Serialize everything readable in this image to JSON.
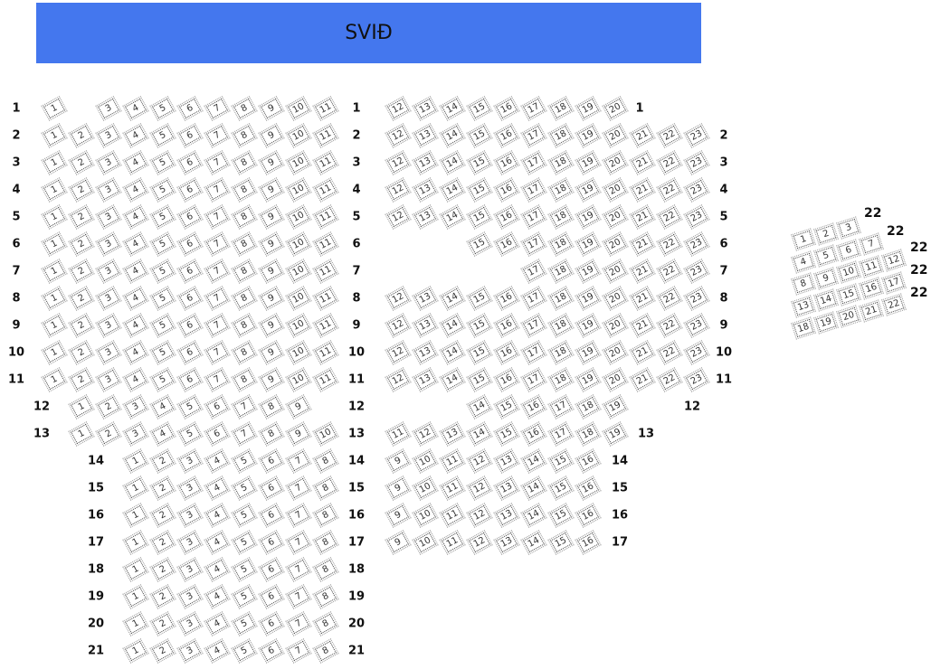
{
  "stage": {
    "label": "SVIÐ",
    "color": "#4477ee"
  },
  "seat_icon": "seat-icon",
  "left_section": {
    "rows": [
      {
        "label": "1",
        "seats": [
          1,
          3,
          4,
          5,
          6,
          7,
          8,
          9,
          10,
          11
        ]
      },
      {
        "label": "2",
        "seats": [
          1,
          2,
          3,
          4,
          5,
          6,
          7,
          8,
          9,
          10,
          11
        ]
      },
      {
        "label": "3",
        "seats": [
          1,
          2,
          3,
          4,
          5,
          6,
          7,
          8,
          9,
          10,
          11
        ]
      },
      {
        "label": "4",
        "seats": [
          1,
          2,
          3,
          4,
          5,
          6,
          7,
          8,
          9,
          10,
          11
        ]
      },
      {
        "label": "5",
        "seats": [
          1,
          2,
          3,
          4,
          5,
          6,
          7,
          8,
          9,
          10,
          11
        ]
      },
      {
        "label": "6",
        "seats": [
          1,
          2,
          3,
          4,
          5,
          6,
          7,
          8,
          9,
          10,
          11
        ]
      },
      {
        "label": "7",
        "seats": [
          1,
          2,
          3,
          4,
          5,
          6,
          7,
          8,
          9,
          10,
          11
        ]
      },
      {
        "label": "8",
        "seats": [
          1,
          2,
          3,
          4,
          5,
          6,
          7,
          8,
          9,
          10,
          11
        ]
      },
      {
        "label": "9",
        "seats": [
          1,
          2,
          3,
          4,
          5,
          6,
          7,
          8,
          9,
          10,
          11
        ]
      },
      {
        "label": "10",
        "seats": [
          1,
          2,
          3,
          4,
          5,
          6,
          7,
          8,
          9,
          10,
          11
        ]
      },
      {
        "label": "11",
        "seats": [
          1,
          2,
          3,
          4,
          5,
          6,
          7,
          8,
          9,
          10,
          11
        ]
      },
      {
        "label": "12",
        "seats": [
          1,
          2,
          3,
          4,
          5,
          6,
          7,
          8,
          9
        ]
      },
      {
        "label": "13",
        "seats": [
          1,
          2,
          3,
          4,
          5,
          6,
          7,
          8,
          9,
          10
        ]
      },
      {
        "label": "14",
        "seats": [
          1,
          2,
          3,
          4,
          5,
          6,
          7,
          8
        ]
      },
      {
        "label": "15",
        "seats": [
          1,
          2,
          3,
          4,
          5,
          6,
          7,
          8
        ]
      },
      {
        "label": "16",
        "seats": [
          1,
          2,
          3,
          4,
          5,
          6,
          7,
          8
        ]
      },
      {
        "label": "17",
        "seats": [
          1,
          2,
          3,
          4,
          5,
          6,
          7,
          8
        ]
      },
      {
        "label": "18",
        "seats": [
          1,
          2,
          3,
          4,
          5,
          6,
          7,
          8
        ]
      },
      {
        "label": "19",
        "seats": [
          1,
          2,
          3,
          4,
          5,
          6,
          7,
          8
        ]
      },
      {
        "label": "20",
        "seats": [
          1,
          2,
          3,
          4,
          5,
          6,
          7,
          8
        ]
      },
      {
        "label": "21",
        "seats": [
          1,
          2,
          3,
          4,
          5,
          6,
          7,
          8
        ]
      }
    ]
  },
  "right_section": {
    "rows": [
      {
        "label": "1",
        "seats": [
          12,
          13,
          14,
          15,
          16,
          17,
          18,
          19,
          20
        ]
      },
      {
        "label": "2",
        "seats": [
          12,
          13,
          14,
          15,
          16,
          17,
          18,
          19,
          20,
          21,
          22,
          23
        ]
      },
      {
        "label": "3",
        "seats": [
          12,
          13,
          14,
          15,
          16,
          17,
          18,
          19,
          20,
          21,
          22,
          23
        ]
      },
      {
        "label": "4",
        "seats": [
          12,
          13,
          14,
          15,
          16,
          17,
          18,
          19,
          20,
          21,
          22,
          23
        ]
      },
      {
        "label": "5",
        "seats": [
          12,
          13,
          14,
          15,
          16,
          17,
          18,
          19,
          20,
          21,
          22,
          23
        ]
      },
      {
        "label": "6",
        "seats": [
          15,
          16,
          17,
          18,
          19,
          20,
          21,
          22,
          23
        ]
      },
      {
        "label": "7",
        "seats": [
          17,
          18,
          19,
          20,
          21,
          22,
          23
        ]
      },
      {
        "label": "8",
        "seats": [
          12,
          13,
          14,
          15,
          16,
          17,
          18,
          19,
          20,
          21,
          22,
          23
        ]
      },
      {
        "label": "9",
        "seats": [
          12,
          13,
          14,
          15,
          16,
          17,
          18,
          19,
          20,
          21,
          22,
          23
        ]
      },
      {
        "label": "10",
        "seats": [
          12,
          13,
          14,
          15,
          16,
          17,
          18,
          19,
          20,
          21,
          22,
          23
        ]
      },
      {
        "label": "11",
        "seats": [
          12,
          13,
          14,
          15,
          16,
          17,
          18,
          19,
          20,
          21,
          22,
          23
        ]
      },
      {
        "label": "12",
        "seats": [
          14,
          15,
          16,
          17,
          18,
          19
        ]
      },
      {
        "label": "13",
        "seats": [
          11,
          12,
          13,
          14,
          15,
          16,
          17,
          18,
          19
        ]
      },
      {
        "label": "14",
        "seats": [
          9,
          10,
          11,
          12,
          13,
          14,
          15,
          16
        ]
      },
      {
        "label": "15",
        "seats": [
          9,
          10,
          11,
          12,
          13,
          14,
          15,
          16
        ]
      },
      {
        "label": "16",
        "seats": [
          9,
          10,
          11,
          12,
          13,
          14,
          15,
          16
        ]
      },
      {
        "label": "17",
        "seats": [
          9,
          10,
          11,
          12,
          13,
          14,
          15,
          16
        ]
      }
    ]
  },
  "side_section": {
    "labels": [
      "22",
      "22",
      "22",
      "22",
      "22"
    ],
    "rows": [
      [
        1,
        2,
        3
      ],
      [
        4,
        5,
        6,
        7
      ],
      [
        8,
        9,
        10,
        11,
        12
      ],
      [
        13,
        14,
        15,
        16,
        17
      ],
      [
        18,
        19,
        20,
        21,
        22
      ]
    ]
  }
}
